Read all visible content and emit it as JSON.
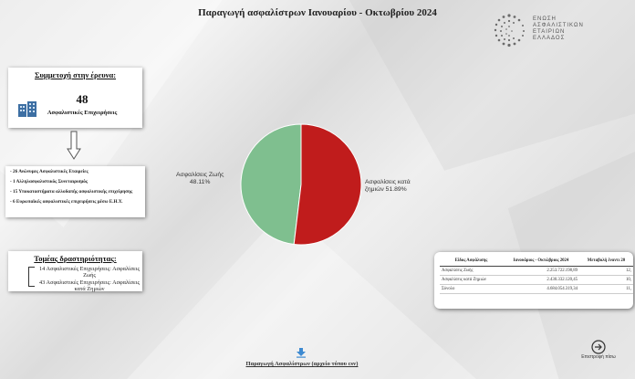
{
  "page": {
    "title": "Παραγωγή ασφαλίστρων Ιανουαρίου - Οκτωβρίου 2024"
  },
  "logo": {
    "line1": "ΕΝΩΣΗ",
    "line2": "ΑΣΦΑΛΙΣΤΙΚΩΝ",
    "line3": "ΕΤΑΙΡΙΩΝ",
    "line4": "ΕΛΛΑΔΟΣ"
  },
  "participation": {
    "heading": "Συμμετοχή στην έρευνα:",
    "number": "48",
    "label": "Ασφαλιστικές Επιχειρήσεις",
    "icon": "building-icon"
  },
  "company_types": [
    "- 26 Ανώνυμες Ασφαλιστικές Εταιρείες",
    "- 1 Αλληλασφαλιστικός Συνεταιρισμός",
    "- 15 Υποκαταστήματα αλλοδαπής ασφαλιστικής επιχείρησης",
    "- 6 Ευρωπαϊκές ασφαλιστικές επιχειρήσεις μέσω Ε.Η.Υ."
  ],
  "sectors": {
    "heading": "Τομέας δραστηριότητας:",
    "items": [
      "14 Ασφαλιστικές Επιχειρήσεις: Ασφαλίσεις Ζωής",
      "43 Ασφαλιστικές Επιχειρήσεις: Ασφαλίσεις κατά Ζημιών"
    ]
  },
  "chart_data": {
    "type": "pie",
    "categories": [
      "Ασφαλίσεις Ζωής",
      "Ασφαλίσεις κατά ζημιών"
    ],
    "values": [
      48.11,
      51.89
    ],
    "labels": [
      "Ασφαλίσεις Ζωής\n48.11%",
      "Ασφαλίσεις κατά\nζημιών 51.89%"
    ],
    "colors": [
      "#7fbf8f",
      "#c01c1c"
    ],
    "legend": "none"
  },
  "table": {
    "headers": [
      "Είδος Ασφάλισης",
      "Ιανουάριος - Οκτώβριος 2024",
      "Μεταβολή έναντι 20"
    ],
    "rows": [
      [
        "Ασφαλίσεις Ζωής",
        "2.253.722.198,89",
        "12,"
      ],
      [
        "Ασφαλίσεις κατά Ζημιών",
        "2.430.332.120,45",
        "10,"
      ],
      [
        "Σύνολο",
        "4.684.054.319,34",
        "11,"
      ]
    ]
  },
  "download": {
    "label": "Παραγωγή Ασφαλίστρων (αρχείο τύπου csv)",
    "icon": "download-icon"
  },
  "back": {
    "label": "Επιστροφή πίσω",
    "icon": "arrow-circle-icon"
  }
}
